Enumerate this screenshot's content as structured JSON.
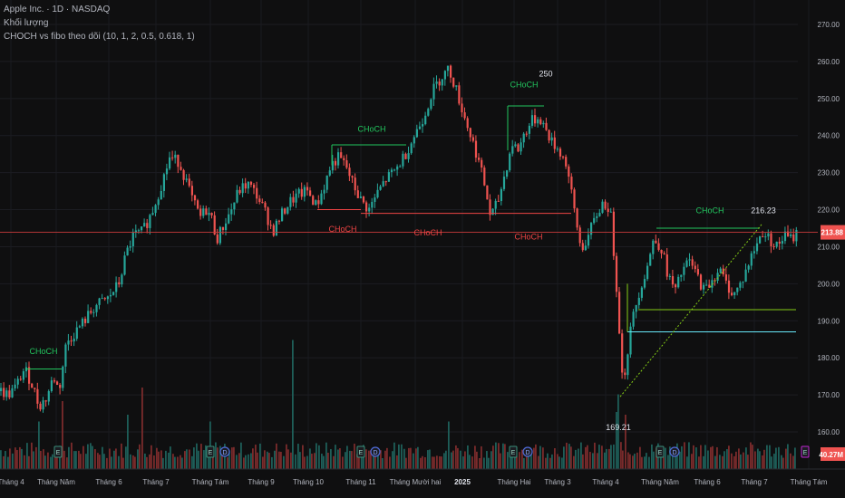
{
  "legend": {
    "symbol_line": "Apple Inc. · 1D · NASDAQ",
    "volume_label": "Khối lượng",
    "indicator_label": "CHOCH vs fibo theo dõi (10, 1, 2, 0.5, 0.618, 1)"
  },
  "colors": {
    "background": "#0f0f10",
    "up": "#26a69a",
    "down": "#ef5350",
    "choch_bull": "#22c55e",
    "choch_bear": "#ef4444",
    "fib_line": "#84cc16",
    "fib_cyan": "#67e8f9",
    "last_price_bg": "#ef5350",
    "volume_badge_bg": "#ef5350"
  },
  "chart_data": {
    "type": "candlestick",
    "ylim": [
      155,
      275
    ],
    "y_ticks": [
      "270.00",
      "260.00",
      "250.00",
      "240.00",
      "230.00",
      "220.00",
      "210.00",
      "200.00",
      "190.00",
      "180.00",
      "170.00",
      "160.00"
    ],
    "x_ticks": [
      "Tháng 4",
      "Tháng Năm",
      "Tháng 6",
      "Tháng 7",
      "Tháng Tám",
      "Tháng 9",
      "Tháng 10",
      "Tháng 11",
      "Tháng Mười hai",
      "2025",
      "Tháng Hai",
      "Tháng 3",
      "Tháng 4",
      "Tháng Năm",
      "Tháng 6",
      "Tháng 7",
      "Tháng Tám"
    ],
    "price_path": [
      [
        0,
        171
      ],
      [
        8,
        170
      ],
      [
        16,
        172
      ],
      [
        26,
        177
      ],
      [
        34,
        173
      ],
      [
        42,
        167
      ],
      [
        50,
        169
      ],
      [
        58,
        175
      ],
      [
        64,
        171
      ],
      [
        72,
        184
      ],
      [
        82,
        187
      ],
      [
        92,
        190
      ],
      [
        104,
        194
      ],
      [
        118,
        196
      ],
      [
        130,
        200
      ],
      [
        138,
        208
      ],
      [
        146,
        213
      ],
      [
        156,
        214
      ],
      [
        166,
        219
      ],
      [
        176,
        226
      ],
      [
        186,
        234
      ],
      [
        196,
        233
      ],
      [
        204,
        228
      ],
      [
        212,
        222
      ],
      [
        220,
        218
      ],
      [
        226,
        220
      ],
      [
        232,
        218
      ],
      [
        238,
        212
      ],
      [
        246,
        216
      ],
      [
        254,
        220
      ],
      [
        262,
        225
      ],
      [
        272,
        227
      ],
      [
        282,
        224
      ],
      [
        292,
        219
      ],
      [
        300,
        214
      ],
      [
        308,
        218
      ],
      [
        318,
        222
      ],
      [
        328,
        224
      ],
      [
        338,
        225
      ],
      [
        348,
        221
      ],
      [
        356,
        226
      ],
      [
        364,
        232
      ],
      [
        372,
        234
      ],
      [
        380,
        232
      ],
      [
        388,
        227
      ],
      [
        398,
        222
      ],
      [
        406,
        220
      ],
      [
        414,
        224
      ],
      [
        424,
        228
      ],
      [
        436,
        231
      ],
      [
        446,
        235
      ],
      [
        456,
        240
      ],
      [
        466,
        245
      ],
      [
        476,
        252
      ],
      [
        486,
        256
      ],
      [
        494,
        258
      ],
      [
        500,
        254
      ],
      [
        510,
        246
      ],
      [
        518,
        240
      ],
      [
        526,
        234
      ],
      [
        534,
        226
      ],
      [
        540,
        218
      ],
      [
        548,
        222
      ],
      [
        556,
        230
      ],
      [
        564,
        238
      ],
      [
        570,
        236
      ],
      [
        578,
        241
      ],
      [
        586,
        244
      ],
      [
        594,
        245
      ],
      [
        600,
        242
      ],
      [
        608,
        238
      ],
      [
        616,
        236
      ],
      [
        624,
        232
      ],
      [
        632,
        220
      ],
      [
        640,
        209
      ],
      [
        648,
        213
      ],
      [
        656,
        218
      ],
      [
        664,
        222
      ],
      [
        672,
        220
      ],
      [
        680,
        196
      ],
      [
        686,
        172
      ],
      [
        690,
        180
      ],
      [
        696,
        190
      ],
      [
        704,
        198
      ],
      [
        712,
        204
      ],
      [
        720,
        212
      ],
      [
        728,
        210
      ],
      [
        736,
        202
      ],
      [
        744,
        198
      ],
      [
        752,
        204
      ],
      [
        760,
        206
      ],
      [
        768,
        202
      ],
      [
        776,
        198
      ],
      [
        784,
        201
      ],
      [
        792,
        204
      ],
      [
        800,
        200
      ],
      [
        808,
        197
      ],
      [
        816,
        200
      ],
      [
        824,
        205
      ],
      [
        832,
        210
      ],
      [
        840,
        214
      ],
      [
        848,
        212
      ],
      [
        856,
        210
      ],
      [
        864,
        213
      ],
      [
        872,
        212
      ],
      [
        878,
        214
      ]
    ],
    "volume_spikes": [
      {
        "x": 42,
        "v": 0.35
      },
      {
        "x": 68,
        "v": 0.5
      },
      {
        "x": 140,
        "v": 0.4
      },
      {
        "x": 156,
        "v": 0.6
      },
      {
        "x": 232,
        "v": 0.35
      },
      {
        "x": 322,
        "v": 0.95
      },
      {
        "x": 494,
        "v": 0.35
      },
      {
        "x": 678,
        "v": 0.42
      },
      {
        "x": 682,
        "v": 0.55
      },
      {
        "x": 690,
        "v": 0.4
      }
    ],
    "lines": [
      {
        "kind": "bull",
        "x1": 28,
        "x2": 68,
        "y": 177
      },
      {
        "kind": "bull",
        "x1": 366,
        "x2": 448,
        "y": 237.5
      },
      {
        "kind": "bull",
        "x1": 560,
        "x2": 600,
        "y": 248
      },
      {
        "kind": "bull",
        "x1": 724,
        "x2": 838,
        "y": 215
      },
      {
        "kind": "bear",
        "x1": 350,
        "x2": 398,
        "y": 220
      },
      {
        "kind": "bear",
        "x1": 398,
        "x2": 540,
        "y": 219
      },
      {
        "kind": "bear",
        "x1": 540,
        "x2": 630,
        "y": 219
      },
      {
        "kind": "fib",
        "x1": 704,
        "x2": 878,
        "y": 193
      },
      {
        "kind": "cyan",
        "x1": 692,
        "x2": 878,
        "y": 187
      }
    ],
    "annotations": [
      {
        "text": "CHoCH",
        "kind": "bull",
        "x": 48,
        "y": 181
      },
      {
        "text": "CHoCH",
        "kind": "bull",
        "x": 410,
        "y": 241
      },
      {
        "text": "CHoCH",
        "kind": "bull",
        "x": 578,
        "y": 253
      },
      {
        "text": "CHoCH",
        "kind": "bull",
        "x": 783,
        "y": 219
      },
      {
        "text": "CHoCH",
        "kind": "bear",
        "x": 378,
        "y": 214
      },
      {
        "text": "CHoCH",
        "kind": "bear",
        "x": 472,
        "y": 213
      },
      {
        "text": "CHoCH",
        "kind": "bear",
        "x": 583,
        "y": 212
      },
      {
        "text": "250",
        "kind": "plain",
        "x": 602,
        "y": 256
      },
      {
        "text": "216.23",
        "kind": "plain",
        "x": 842,
        "y": 219
      },
      {
        "text": "169.21",
        "kind": "plain",
        "x": 682,
        "y": 160.5
      }
    ],
    "diagonal": {
      "x1": 684,
      "y1": 169.5,
      "x2": 840,
      "y2": 216
    },
    "last_price": "213.88",
    "last_price_value": 213.88,
    "volume_badge": "40.27M"
  }
}
